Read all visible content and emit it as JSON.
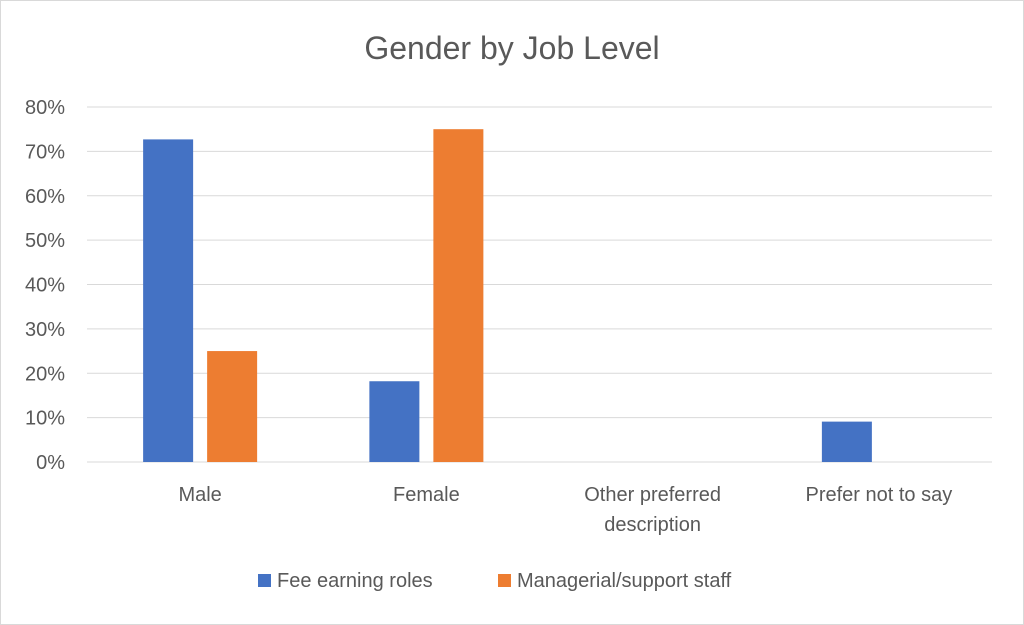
{
  "chart_data": {
    "type": "bar",
    "title": "Gender by Job Level",
    "xlabel": "",
    "ylabel": "",
    "ylim": [
      0,
      0.8
    ],
    "y_ticks": [
      "0%",
      "10%",
      "20%",
      "30%",
      "40%",
      "50%",
      "60%",
      "70%",
      "80%"
    ],
    "y_tick_values": [
      0,
      0.1,
      0.2,
      0.3,
      0.4,
      0.5,
      0.6,
      0.7,
      0.8
    ],
    "categories": [
      [
        "Male"
      ],
      [
        "Female"
      ],
      [
        "Other preferred",
        "description"
      ],
      [
        "Prefer not to say"
      ]
    ],
    "series": [
      {
        "name": "Fee earning roles",
        "color": "#4472c4",
        "values": [
          0.727,
          0.182,
          0,
          0.091
        ]
      },
      {
        "name": "Managerial/support staff",
        "color": "#ed7d31",
        "values": [
          0.25,
          0.75,
          0,
          0
        ]
      }
    ],
    "grid": true,
    "legend_position": "bottom"
  }
}
